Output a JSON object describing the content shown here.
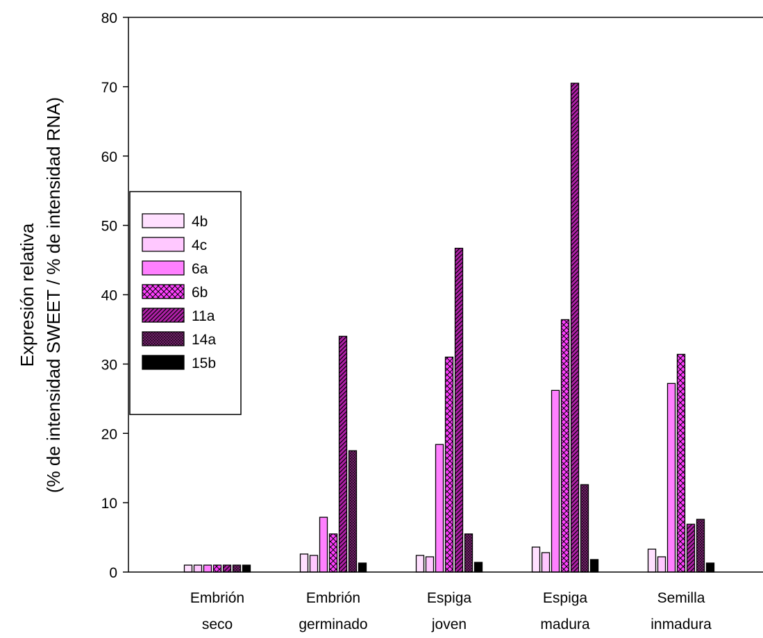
{
  "chart_data": {
    "type": "bar",
    "title": "",
    "xlabel": "",
    "ylabel_line1": "Expresión relativa",
    "ylabel_line2": "(% de intensidad SWEET / % de intensidad RNA)",
    "ylim": [
      0,
      80
    ],
    "yticks": [
      0,
      10,
      20,
      30,
      40,
      50,
      60,
      70,
      80
    ],
    "grid": false,
    "legend_position": "left-middle",
    "categories": [
      [
        "Embrión",
        "seco"
      ],
      [
        "Embrión",
        "germinado"
      ],
      [
        "Espiga",
        "joven"
      ],
      [
        "Espiga",
        "madura"
      ],
      [
        "Semilla",
        "inmadura"
      ]
    ],
    "series": [
      {
        "name": "4b",
        "color": "#ffe0ff",
        "pattern": "none",
        "values": [
          1.0,
          2.6,
          2.4,
          3.6,
          3.3
        ]
      },
      {
        "name": "4c",
        "color": "#ffc8ff",
        "pattern": "none",
        "values": [
          1.0,
          2.4,
          2.2,
          2.8,
          2.2
        ]
      },
      {
        "name": "6a",
        "color": "#ff80ff",
        "pattern": "none",
        "values": [
          1.0,
          7.9,
          18.4,
          26.2,
          27.2
        ]
      },
      {
        "name": "6b",
        "color": "#ff40ff",
        "pattern": "crosshatch",
        "values": [
          1.0,
          5.5,
          31.0,
          36.4,
          31.4
        ]
      },
      {
        "name": "11a",
        "color": "#b020a8",
        "pattern": "diagonal",
        "values": [
          1.0,
          34.0,
          46.7,
          70.5,
          6.9
        ]
      },
      {
        "name": "14a",
        "color": "#702068",
        "pattern": "dots",
        "values": [
          1.0,
          17.5,
          5.5,
          12.6,
          7.6
        ]
      },
      {
        "name": "15b",
        "color": "#000000",
        "pattern": "none",
        "values": [
          1.0,
          1.3,
          1.4,
          1.8,
          1.3
        ]
      }
    ]
  }
}
